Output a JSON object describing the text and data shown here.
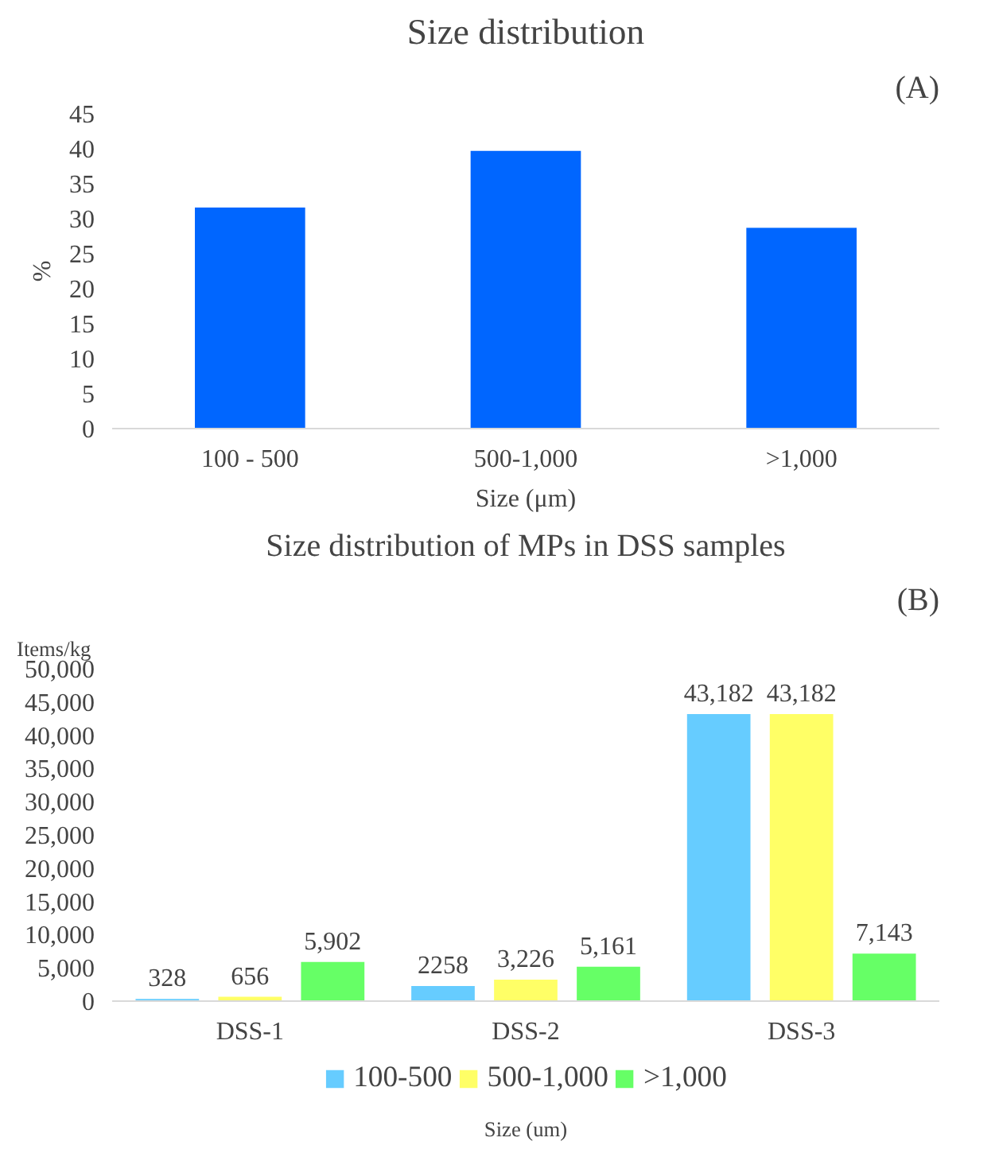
{
  "chart_data": [
    {
      "type": "bar",
      "title": "Size distribution",
      "xlabel": "Size (μm)",
      "ylabel": "%",
      "categories": [
        "100 - 500",
        "500-1,000",
        ">1,000"
      ],
      "values": [
        31.6,
        39.7,
        28.7
      ],
      "color": "#0066ff",
      "ylim": [
        0,
        45
      ],
      "yticks": [
        0,
        5,
        10,
        15,
        20,
        25,
        30,
        35,
        40,
        45
      ],
      "grid": false,
      "legend": false,
      "annotations": [
        "(A)"
      ]
    },
    {
      "type": "bar",
      "title": "Size distribution of MPs in DSS samples",
      "xlabel": "Size (um)",
      "ylabel": "Items/kg",
      "categories": [
        "DSS-1",
        "DSS-2",
        "DSS-3"
      ],
      "series": [
        {
          "name": "100-500",
          "color": "#66ccff",
          "values": [
            328,
            2258,
            43182
          ],
          "value_labels": [
            "328",
            "2258",
            "43,182"
          ]
        },
        {
          "name": "500-1,000",
          "color": "#ffff66",
          "values": [
            656,
            3226,
            43182
          ],
          "value_labels": [
            "656",
            "3,226",
            "43,182"
          ]
        },
        {
          "name": ">1,000",
          "color": "#66ff66",
          "values": [
            5902,
            5161,
            7143
          ],
          "value_labels": [
            "5,902",
            "5,161",
            "7,143"
          ]
        }
      ],
      "ylim": [
        0,
        50000
      ],
      "yticks": [
        {
          "value": 0,
          "label": "0"
        },
        {
          "value": 5000,
          "label": "5,000"
        },
        {
          "value": 10000,
          "label": "10,000"
        },
        {
          "value": 15000,
          "label": "15,000"
        },
        {
          "value": 20000,
          "label": "20,000"
        },
        {
          "value": 25000,
          "label": "25,000"
        },
        {
          "value": 30000,
          "label": "30,000"
        },
        {
          "value": 35000,
          "label": "35,000"
        },
        {
          "value": 40000,
          "label": "40,000"
        },
        {
          "value": 45000,
          "label": "45,000"
        },
        {
          "value": 50000,
          "label": "50,000"
        }
      ],
      "grid": false,
      "legend": "bottom",
      "annotations": [
        "(B)"
      ]
    }
  ]
}
